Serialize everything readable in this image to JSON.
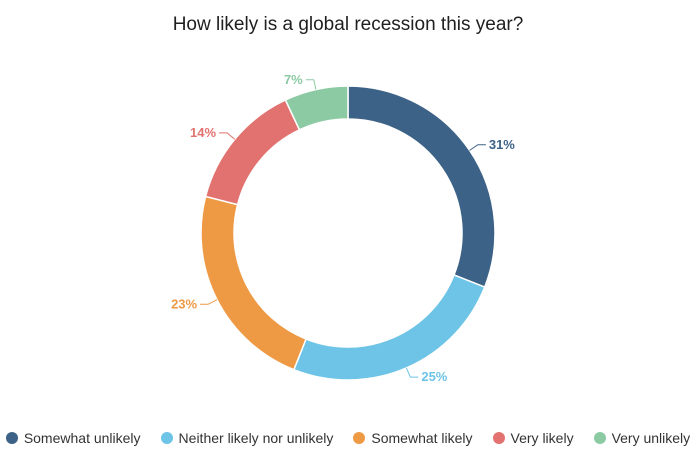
{
  "chart_data": {
    "type": "pie",
    "title": "How likely is a global recession this year?",
    "donut": true,
    "legend_position": "bottom",
    "slices": [
      {
        "name": "Somewhat unlikely",
        "value": 31,
        "label": "31%",
        "color": "#3d6287"
      },
      {
        "name": "Neither likely nor unlikely",
        "value": 25,
        "label": "25%",
        "color": "#6ec4e6"
      },
      {
        "name": "Somewhat likely",
        "value": 23,
        "label": "23%",
        "color": "#ee9a45"
      },
      {
        "name": "Very likely",
        "value": 14,
        "label": "14%",
        "color": "#e2726f"
      },
      {
        "name": "Very unlikely",
        "value": 7,
        "label": "7%",
        "color": "#8ccaa3"
      }
    ]
  }
}
